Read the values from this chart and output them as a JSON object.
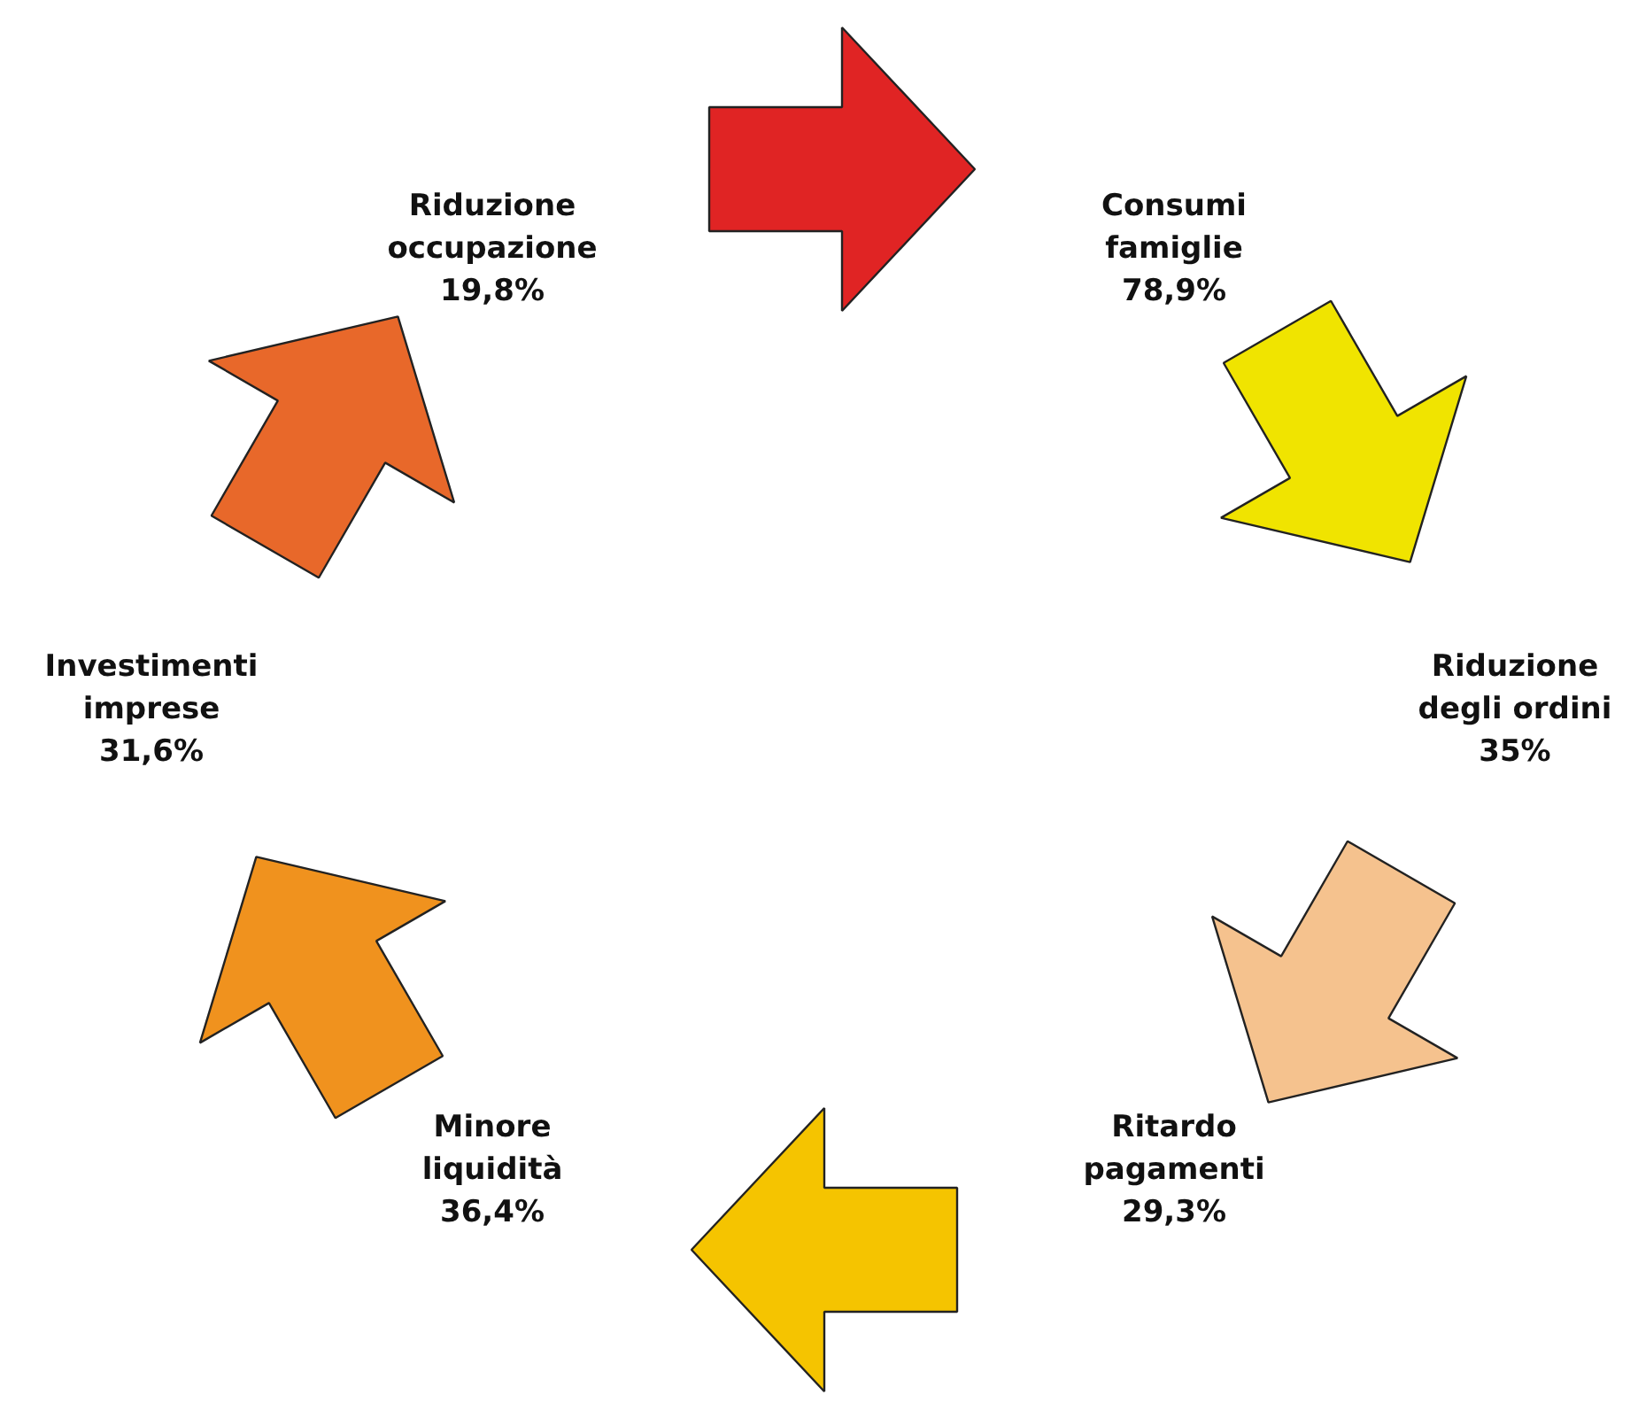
{
  "chart_data": {
    "type": "other",
    "categories": [
      "Consumi famiglie",
      "Riduzione degli ordini",
      "Ritardo pagamenti",
      "Minore liquidità",
      "Investimenti imprese",
      "Riduzione occupazione"
    ],
    "values": [
      78.9,
      35,
      29.3,
      36.4,
      31.6,
      19.8
    ],
    "value_labels": [
      "78,9%",
      "35%",
      "29,3%",
      "36,4%",
      "31,6%",
      "19,8%"
    ],
    "colors": [
      "#e02424",
      "#f0e400",
      "#f5c28e",
      "#f5c400",
      "#f0921e",
      "#e8682a"
    ]
  }
}
